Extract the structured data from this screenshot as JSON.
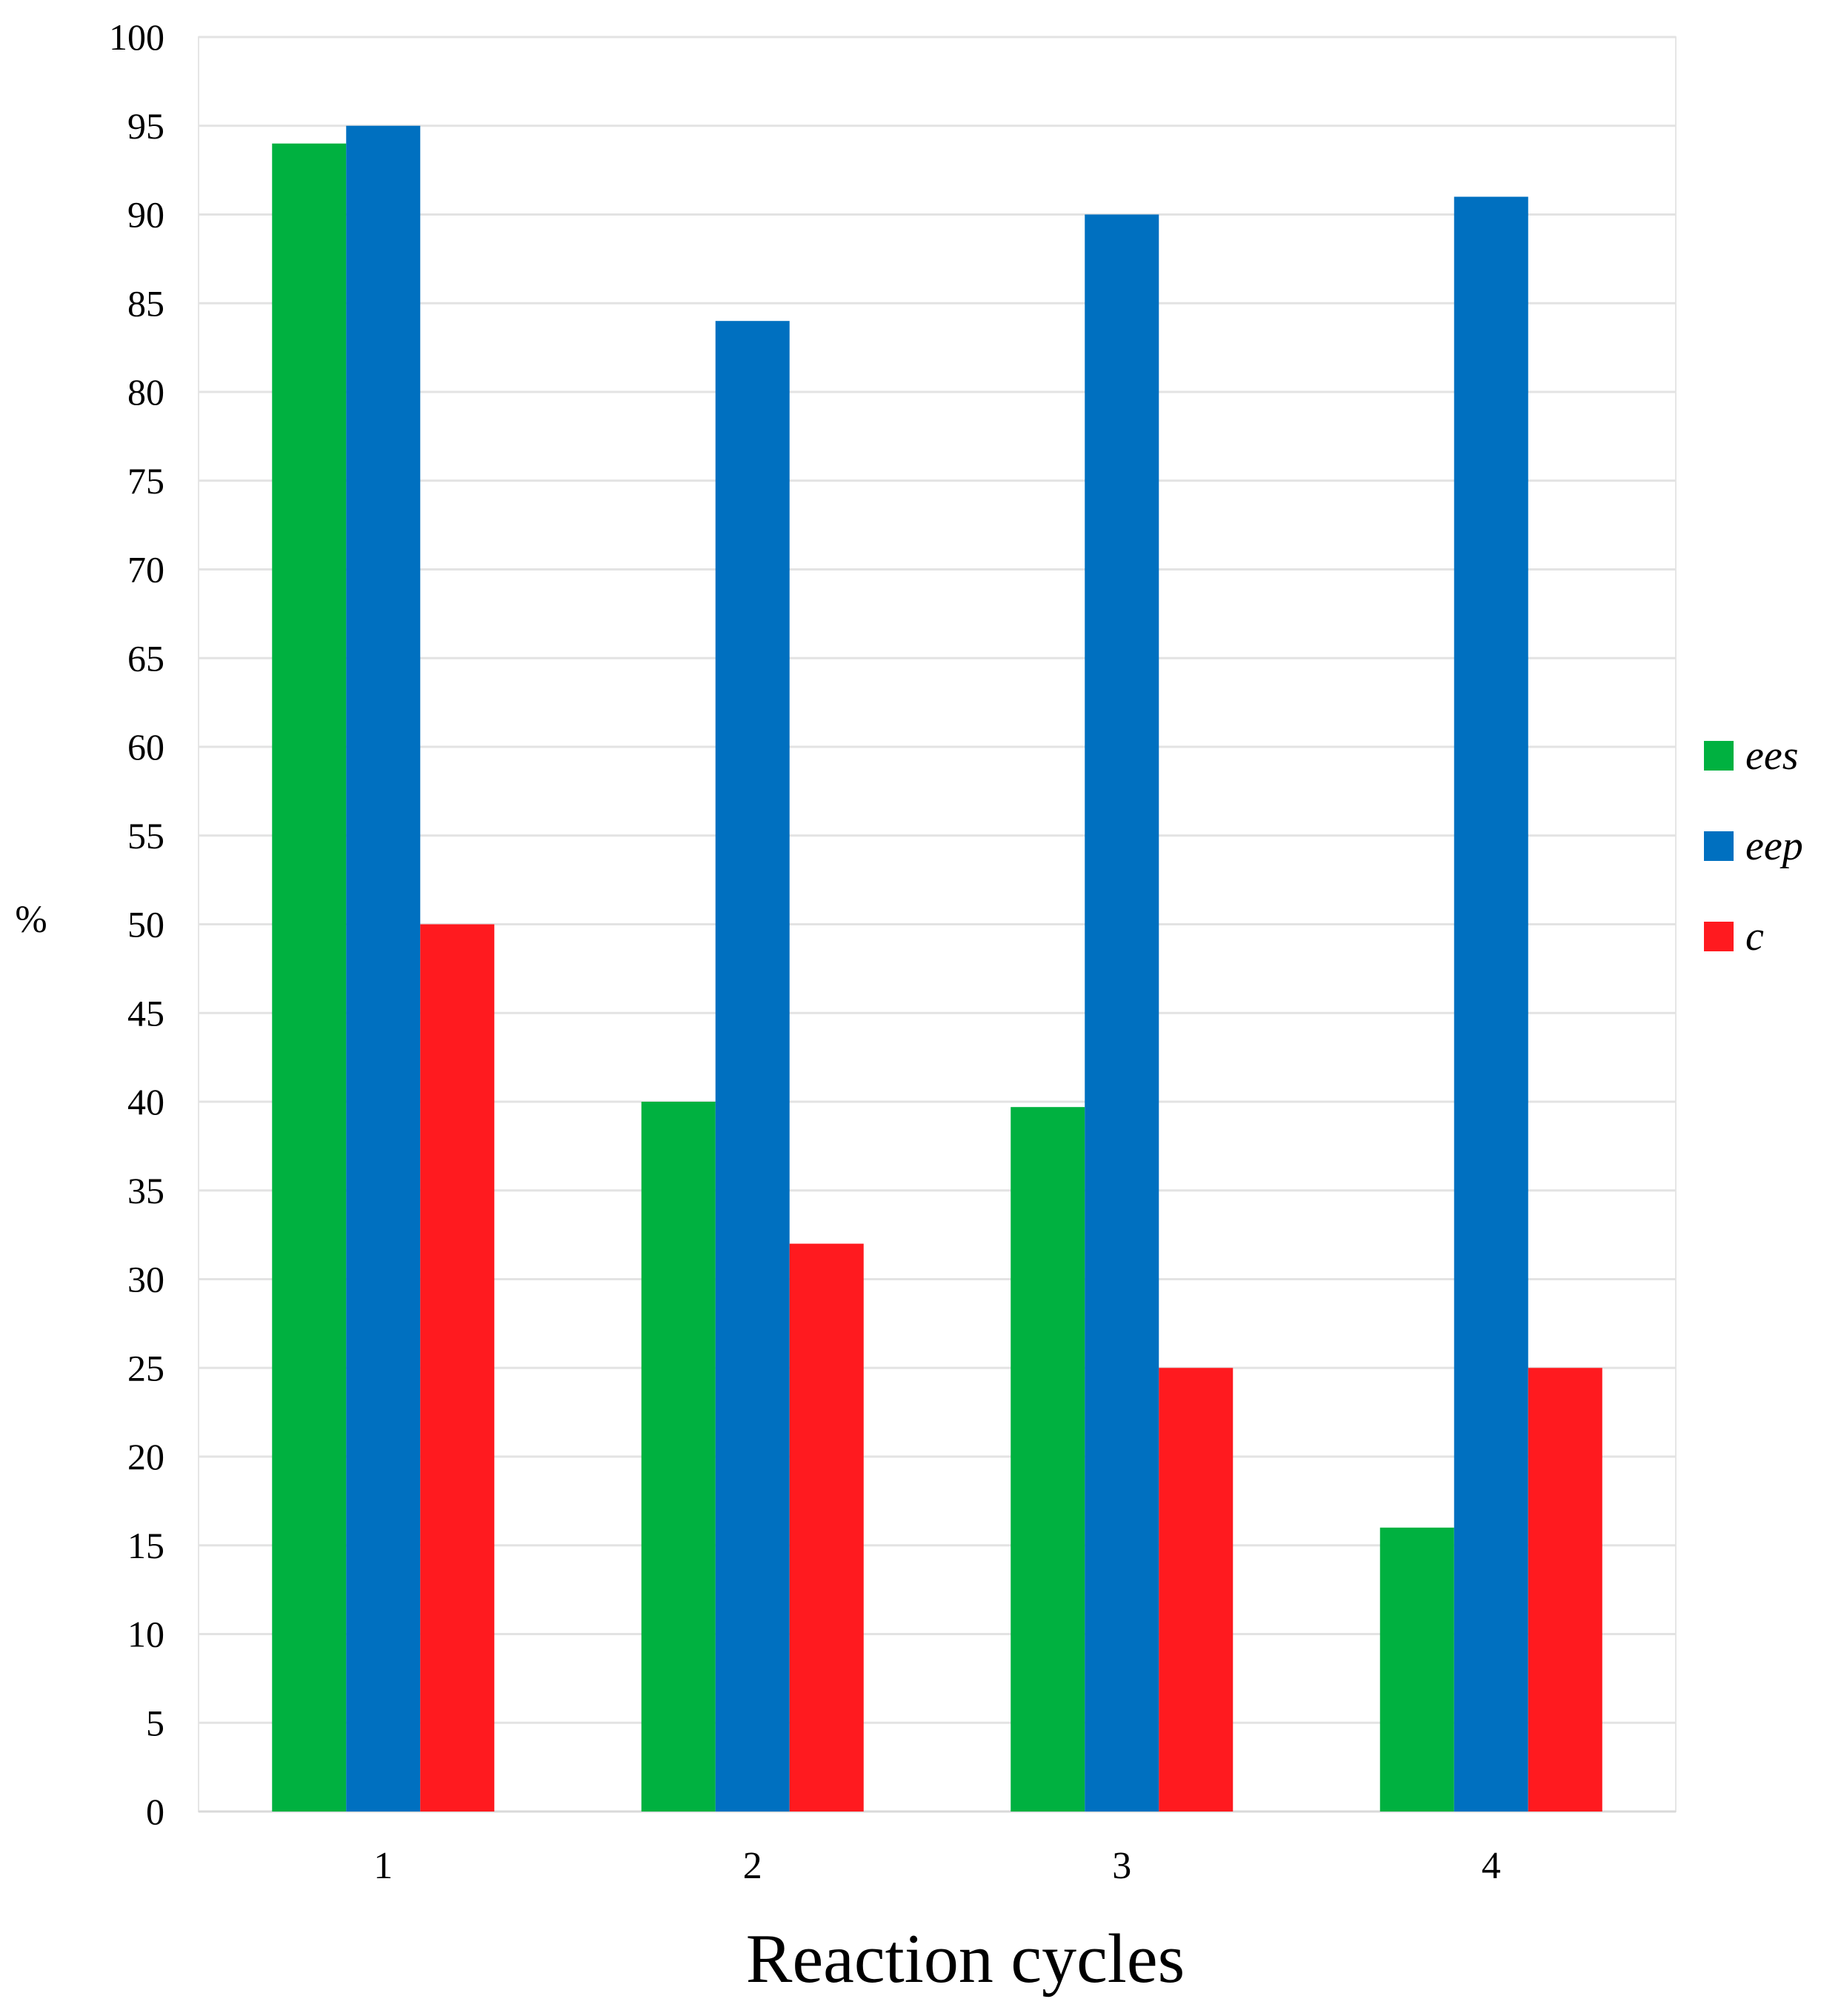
{
  "chart_data": {
    "type": "bar",
    "title": "",
    "xlabel": "Reaction cycles",
    "ylabel": "%",
    "categories": [
      "1",
      "2",
      "3",
      "4"
    ],
    "series": [
      {
        "name": "ees",
        "color": "#00b140",
        "values": [
          94,
          40,
          39.7,
          16
        ]
      },
      {
        "name": "eep",
        "color": "#0070c0",
        "values": [
          95,
          84,
          90,
          91
        ]
      },
      {
        "name": "c",
        "color": "#ff1a1f",
        "values": [
          50,
          32,
          25,
          25
        ]
      }
    ],
    "ylim": [
      0,
      100
    ],
    "ytick_step": 5,
    "grid": true,
    "legend_position": "right"
  }
}
